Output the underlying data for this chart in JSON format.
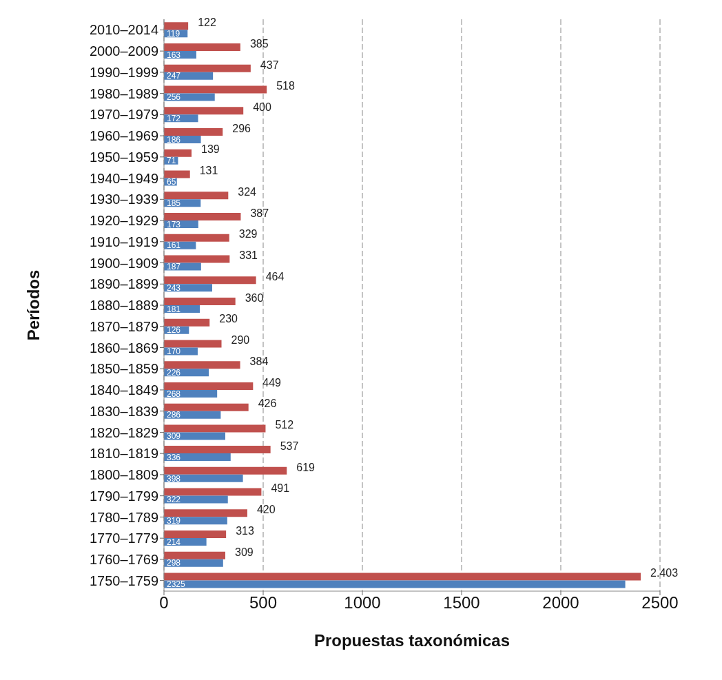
{
  "chart_data": {
    "type": "bar",
    "orientation": "horizontal",
    "xlabel": "Propuestas taxonómicas",
    "ylabel": "Períodos",
    "categories": [
      "2010–2014",
      "2000–2009",
      "1990–1999",
      "1980–1989",
      "1970–1979",
      "1960–1969",
      "1950–1959",
      "1940–1949",
      "1930–1939",
      "1920–1929",
      "1910–1919",
      "1900–1909",
      "1890–1899",
      "1880–1889",
      "1870–1879",
      "1860–1869",
      "1850–1859",
      "1840–1849",
      "1830–1839",
      "1820–1829",
      "1810–1819",
      "1800–1809",
      "1790–1799",
      "1780–1789",
      "1770–1779",
      "1760–1769",
      "1750–1759"
    ],
    "series": [
      {
        "color": "#c0504d",
        "values": [
          122,
          385,
          437,
          518,
          400,
          296,
          139,
          131,
          324,
          387,
          329,
          331,
          464,
          360,
          230,
          290,
          384,
          449,
          426,
          512,
          537,
          619,
          491,
          420,
          313,
          309,
          2403
        ],
        "value_labels": [
          "122",
          "385",
          "437",
          "518",
          "400",
          "296",
          "139",
          "131",
          "324",
          "387",
          "329",
          "331",
          "464",
          "360",
          "230",
          "290",
          "384",
          "449",
          "426",
          "512",
          "537",
          "619",
          "491",
          "420",
          "313",
          "309",
          "2.403"
        ]
      },
      {
        "color": "#4f81bd",
        "values": [
          119,
          163,
          247,
          256,
          172,
          186,
          71,
          65,
          185,
          173,
          161,
          187,
          243,
          181,
          126,
          170,
          226,
          268,
          286,
          309,
          336,
          398,
          322,
          319,
          214,
          298,
          2325
        ],
        "value_labels": [
          "119",
          "163",
          "247",
          "256",
          "172",
          "186",
          "71",
          "65",
          "185",
          "173",
          "161",
          "187",
          "243",
          "181",
          "126",
          "170",
          "226",
          "268",
          "286",
          "309",
          "336",
          "398",
          "322",
          "319",
          "214",
          "298",
          "2325"
        ]
      }
    ],
    "xlim": [
      0,
      2500
    ],
    "xticks": [
      0,
      500,
      1000,
      1500,
      2000,
      2500
    ],
    "grid": "x"
  }
}
